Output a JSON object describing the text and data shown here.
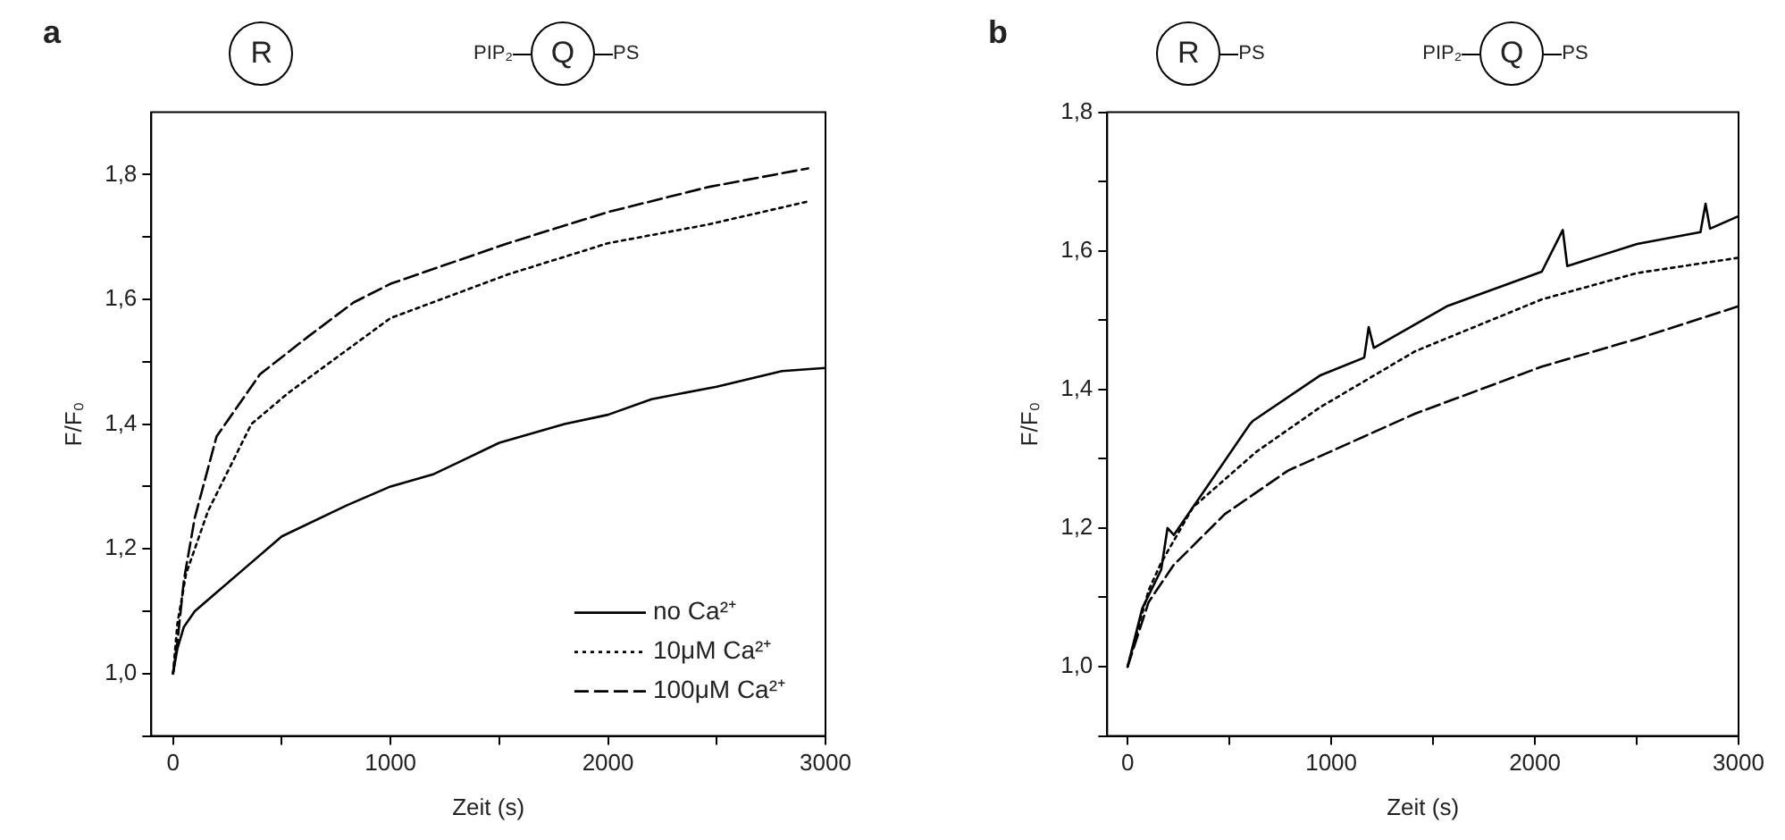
{
  "chart_data": [
    {
      "type": "line",
      "title": "a",
      "xlabel": "Zeit (s)",
      "ylabel": "F/F₀",
      "annotations": [
        "R",
        "PIP₂",
        "Q",
        "PS"
      ],
      "xlim": [
        -100,
        3000
      ],
      "ylim": [
        0.9,
        1.9
      ],
      "xticks": [
        0,
        {
          "value": 500,
          "label": null
        },
        1000,
        {
          "value": 1500,
          "label": null
        },
        2000,
        {
          "value": 2500,
          "label": null
        },
        3000
      ],
      "yticks": [
        {
          "value": 0.9,
          "label": null
        },
        {
          "value": 1.0,
          "label": "1,0"
        },
        {
          "value": 1.1,
          "label": null
        },
        {
          "value": 1.2,
          "label": "1,2"
        },
        {
          "value": 1.3,
          "label": null
        },
        {
          "value": 1.4,
          "label": "1,4"
        },
        {
          "value": 1.5,
          "label": null
        },
        {
          "value": 1.6,
          "label": "1,6"
        },
        {
          "value": 1.7,
          "label": null
        },
        {
          "value": 1.8,
          "label": "1,8"
        }
      ],
      "grid": false,
      "legend": "bottom right",
      "marker": "none",
      "series": [
        {
          "name": "no Ca²⁺",
          "color": "#000000",
          "line_style": "solid",
          "x": [
            0,
            20,
            50,
            100,
            200,
            300,
            500,
            800,
            1000,
            1200,
            1500,
            1800,
            2000,
            2200,
            2500,
            2800,
            3000
          ],
          "values": [
            1.0,
            1.04,
            1.075,
            1.1,
            1.13,
            1.16,
            1.22,
            1.27,
            1.3,
            1.32,
            1.37,
            1.4,
            1.415,
            1.44,
            1.46,
            1.485,
            1.49
          ]
        },
        {
          "name": "10μM Ca²⁺",
          "color": "#000000",
          "line_style": "dotted",
          "x": [
            0,
            20,
            60,
            160,
            360,
            530,
            1000,
            1540,
            2000,
            2460,
            2920
          ],
          "values": [
            1.0,
            1.08,
            1.16,
            1.26,
            1.4,
            1.45,
            1.57,
            1.64,
            1.69,
            1.72,
            1.757
          ]
        },
        {
          "name": "100μM Ca²⁺",
          "color": "#000000",
          "line_style": "dashed",
          "x": [
            0,
            20,
            50,
            100,
            200,
            400,
            620,
            830,
            1000,
            1540,
            2000,
            2460,
            2920
          ],
          "values": [
            1.0,
            1.05,
            1.15,
            1.25,
            1.38,
            1.48,
            1.54,
            1.595,
            1.625,
            1.69,
            1.74,
            1.78,
            1.81
          ]
        }
      ]
    },
    {
      "type": "line",
      "title": "b",
      "xlabel": "Zeit (s)",
      "ylabel": "F/F₀",
      "annotations": [
        "R",
        "PS",
        "PIP₂",
        "Q",
        "PS"
      ],
      "xlim": [
        -100,
        3000
      ],
      "ylim": [
        0.9,
        1.8
      ],
      "xticks": [
        0,
        {
          "value": 500,
          "label": null
        },
        1000,
        {
          "value": 1500,
          "label": null
        },
        2000,
        {
          "value": 2500,
          "label": null
        },
        3000
      ],
      "yticks": [
        {
          "value": 0.9,
          "label": null
        },
        {
          "value": 1.0,
          "label": "1,0"
        },
        {
          "value": 1.1,
          "label": null
        },
        {
          "value": 1.2,
          "label": "1,2"
        },
        {
          "value": 1.3,
          "label": null
        },
        {
          "value": 1.4,
          "label": "1,4"
        },
        {
          "value": 1.5,
          "label": null
        },
        {
          "value": 1.6,
          "label": "1,6"
        },
        {
          "value": 1.7,
          "label": null
        },
        {
          "value": 1.8,
          "label": "1,8"
        }
      ],
      "grid": false,
      "marker": "none",
      "series": [
        {
          "color": "#000000",
          "line_style": "solid",
          "x": [
            0,
            72,
            165,
            196,
            227,
            414,
            601,
            617,
            944,
            1162,
            1184,
            1209,
            1567,
            2034,
            2137,
            2159,
            2502,
            2813,
            2838,
            2860,
            3000
          ],
          "values": [
            1.0,
            1.084,
            1.14,
            1.2,
            1.19,
            1.27,
            1.35,
            1.355,
            1.42,
            1.446,
            1.49,
            1.46,
            1.52,
            1.57,
            1.63,
            1.578,
            1.61,
            1.627,
            1.668,
            1.632,
            1.65
          ]
        },
        {
          "color": "#000000",
          "line_style": "dotted",
          "x": [
            0,
            103,
            165,
            321,
            632,
            944,
            1411,
            2034,
            2502,
            3000
          ],
          "values": [
            1.0,
            1.11,
            1.15,
            1.23,
            1.31,
            1.374,
            1.455,
            1.53,
            1.568,
            1.59
          ]
        },
        {
          "color": "#000000",
          "line_style": "dashed",
          "x": [
            0,
            103,
            227,
            477,
            788,
            1411,
            2034,
            2502,
            3000
          ],
          "values": [
            1.0,
            1.093,
            1.147,
            1.22,
            1.283,
            1.365,
            1.433,
            1.473,
            1.52
          ]
        }
      ]
    }
  ]
}
